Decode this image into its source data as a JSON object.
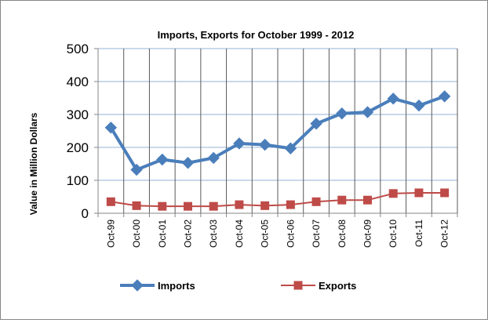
{
  "chart_data": {
    "type": "line",
    "title": "Imports, Exports for October 1999 - 2012",
    "ylabel": "Value in  Million  Dollars",
    "xlabel": "",
    "categories": [
      "Oct-99",
      "Oct-00",
      "Oct-01",
      "Oct-02",
      "Oct-03",
      "Oct-04",
      "Oct-05",
      "Oct-06",
      "Oct-07",
      "Oct-08",
      "Oct-09",
      "Oct-10",
      "Oct-11",
      "Oct-12"
    ],
    "yticks": [
      "0",
      "100",
      "200",
      "300",
      "400",
      "500"
    ],
    "ylim": [
      0,
      500
    ],
    "grid": true,
    "legend_position": "bottom",
    "series": [
      {
        "name": "Imports",
        "values": [
          260,
          132,
          163,
          153,
          168,
          212,
          208,
          197,
          272,
          303,
          307,
          348,
          327,
          355
        ],
        "color": "#4A7EBB",
        "marker": "diamond"
      },
      {
        "name": "Exports",
        "values": [
          35,
          23,
          21,
          21,
          21,
          26,
          23,
          26,
          35,
          40,
          40,
          60,
          62,
          62
        ],
        "color": "#BE4B48",
        "marker": "square"
      }
    ]
  }
}
